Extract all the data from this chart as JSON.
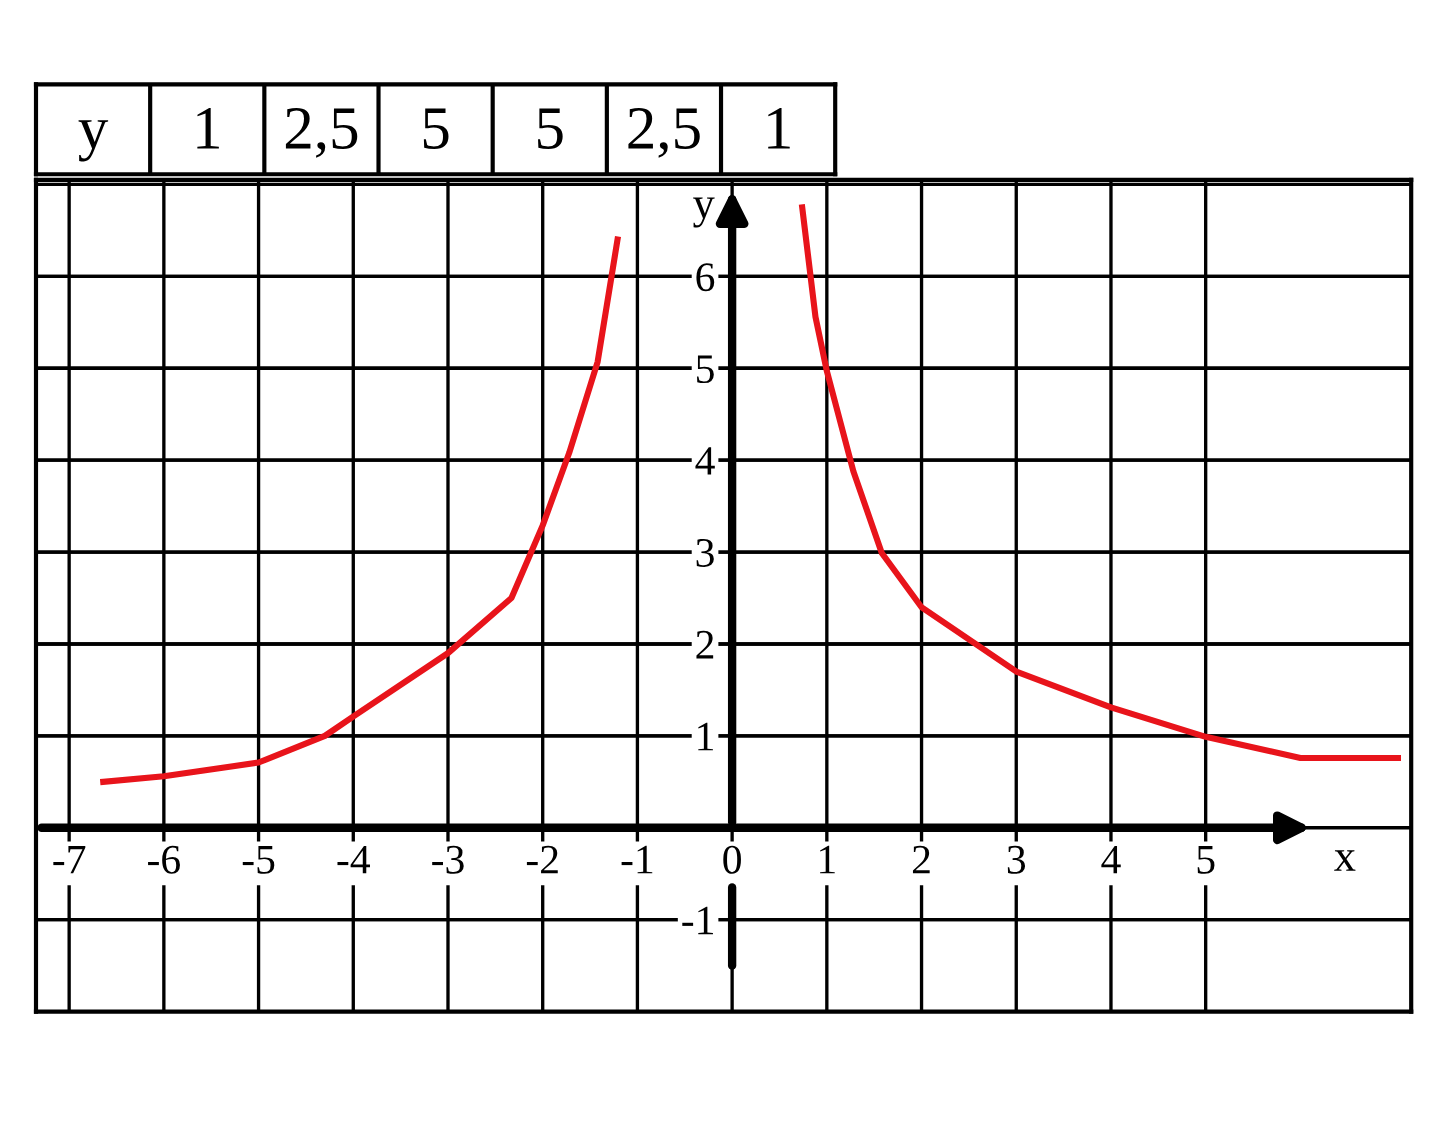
{
  "chart_data": {
    "type": "line",
    "xlabel": "x",
    "ylabel": "y",
    "series": [
      {
        "color": "#e8141b",
        "x": [
          -6.64,
          -6.0,
          -5.0,
          -4.3,
          -4.0,
          -3.0,
          -2.33,
          -2.0,
          -1.72,
          -1.42,
          -1.21
        ],
        "values": [
          0.5,
          0.56,
          0.71,
          1.0,
          1.21,
          1.9,
          2.5,
          3.29,
          4.08,
          5.07,
          6.4
        ]
      },
      {
        "color": "#e8141b",
        "x": [
          0.74,
          0.88,
          1.0,
          1.28,
          1.58,
          2.0,
          3.0,
          4.0,
          5.0,
          6.0,
          7.03
        ],
        "values": [
          6.75,
          5.56,
          4.97,
          3.88,
          2.99,
          2.4,
          1.7,
          1.31,
          0.99,
          0.76,
          0.76
        ]
      }
    ],
    "xlim": [
      -7.35,
      7.17
    ],
    "ylim": [
      -2,
      7.05
    ],
    "xticks": [
      -7,
      -6,
      -5,
      -4,
      -3,
      -2,
      -1,
      0,
      1,
      2,
      3,
      4,
      5
    ],
    "yticks": [
      -1,
      1,
      2,
      3,
      4,
      5,
      6
    ],
    "grid": true,
    "marker": "none",
    "line_style": "solid",
    "legend": false,
    "annotations": [
      "y",
      "1",
      "2,5",
      "5",
      "5",
      "2,5",
      "1"
    ]
  }
}
